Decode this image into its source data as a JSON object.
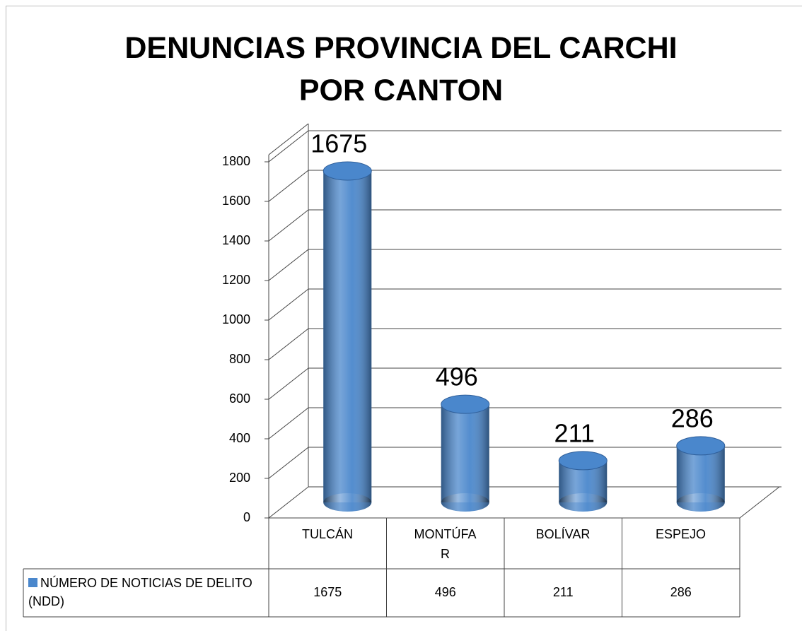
{
  "chart_data": {
    "type": "bar3d",
    "title": "DENUNCIAS PROVINCIA DEL CARCHI   POR CANTON",
    "categories": [
      "TULCÁN",
      "MONTÚFAR",
      "BOLÍVAR",
      "ESPEJO"
    ],
    "series": [
      {
        "name": "NÚMERO DE NOTICIAS DE DELITO (NDD)",
        "color": "#4a87cc",
        "values": [
          1675,
          496,
          211,
          286
        ]
      }
    ],
    "ylim": [
      0,
      1800
    ],
    "yticks": [
      0,
      200,
      400,
      600,
      800,
      1000,
      1200,
      1400,
      1600,
      1800
    ],
    "grid": true,
    "data_table": true
  }
}
